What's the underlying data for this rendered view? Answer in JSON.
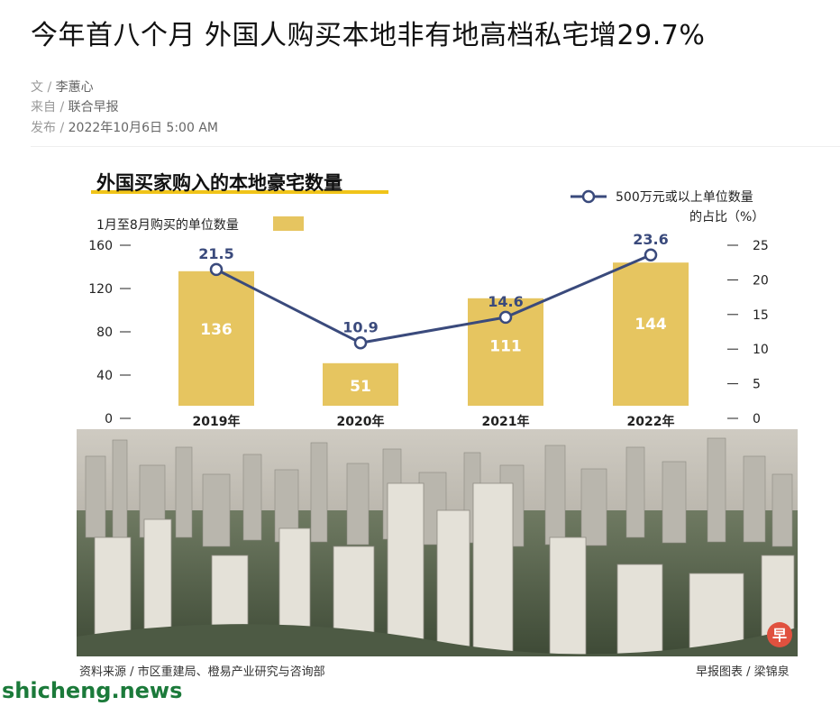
{
  "article": {
    "title": "今年首八个月 外国人购买本地非有地高档私宅增29.7%",
    "author_key": "文 /",
    "author": "李蕙心",
    "source_key": "来自 /",
    "source": "联合早报",
    "date_key": "发布 /",
    "date": "2022年10月6日 5:00 AM"
  },
  "figure": {
    "source_note": "资料来源 / 市区重建局、橙易产业研究与咨询部",
    "credit": "早报图表 / 梁锦泉",
    "logo_char": "早"
  },
  "watermark": "shicheng.news",
  "colors": {
    "bar": "#e6c560",
    "line": "#3a4a7c",
    "title_underline": "#f0c419"
  },
  "chart_data": {
    "type": "bar+line",
    "title": "外国买家购入的本地豪宅数量",
    "categories": [
      "2019年",
      "2020年",
      "2021年",
      "2022年"
    ],
    "series": [
      {
        "name": "1月至8月购买的单位数量",
        "type": "bar",
        "axis": "left",
        "values": [
          136,
          51,
          111,
          144
        ]
      },
      {
        "name": "500万元或以上单位数量的占比（%）",
        "type": "line",
        "axis": "right",
        "values": [
          21.5,
          10.9,
          14.6,
          23.6
        ]
      }
    ],
    "left_axis": {
      "ticks": [
        "0",
        "40",
        "80",
        "120",
        "160"
      ],
      "range": [
        0,
        160
      ]
    },
    "right_axis": {
      "ticks": [
        "0",
        "5",
        "10",
        "15",
        "20",
        "25"
      ],
      "range": [
        0,
        25
      ]
    },
    "legend_line_label_1": "500万元或以上单位数量",
    "legend_line_label_2": "的占比（%）",
    "grid": false
  }
}
